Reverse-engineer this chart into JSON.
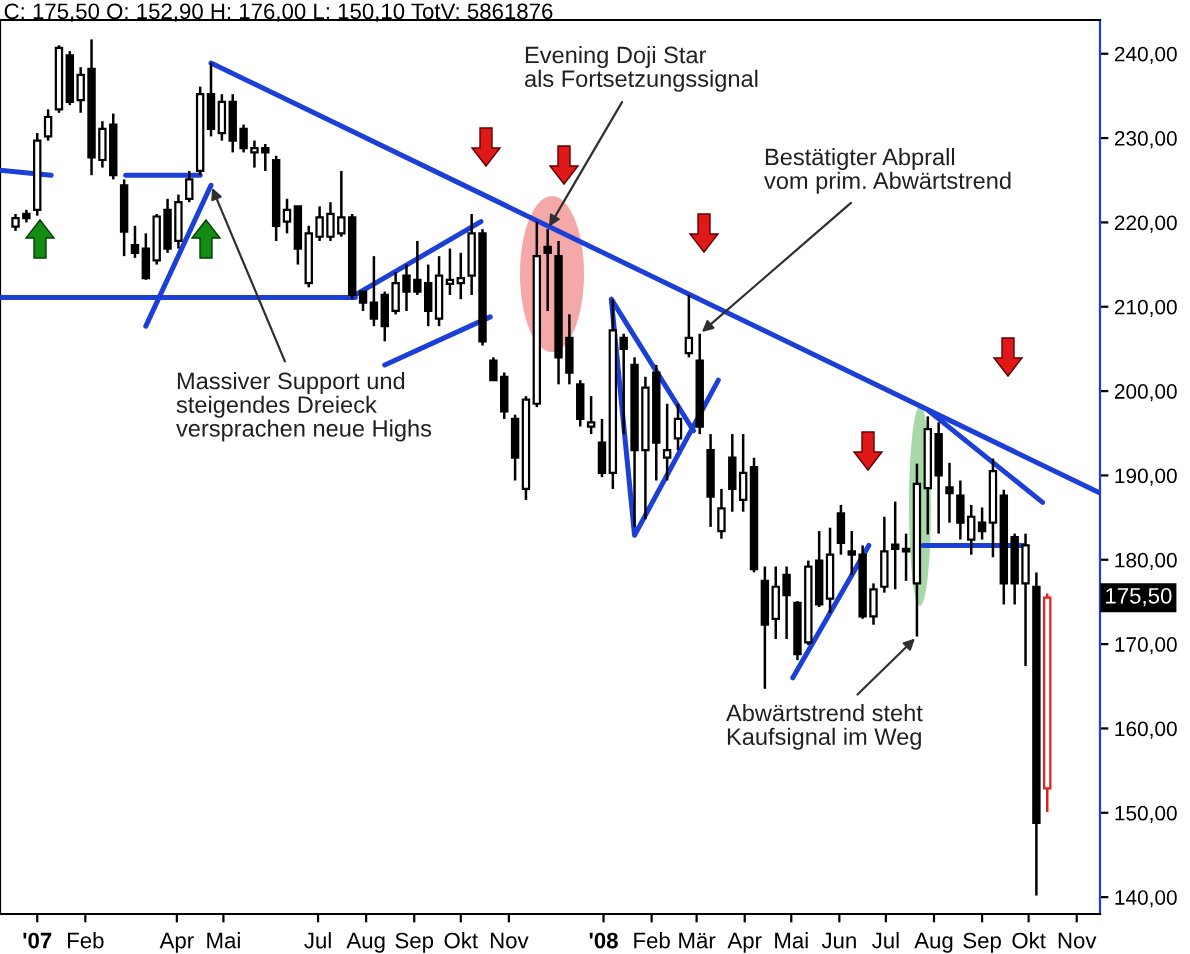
{
  "chart_data": {
    "type": "candlestick",
    "title": "C: 175,50 O: 152,90 H: 176,00 L: 150,10 TotV: 5861876",
    "x": [
      "2006-12-18",
      "2006-12-25",
      "2007-01-01",
      "2007-01-08",
      "2007-01-15",
      "2007-01-22",
      "2007-01-29",
      "2007-02-05",
      "2007-02-12",
      "2007-02-19",
      "2007-02-26",
      "2007-03-05",
      "2007-03-12",
      "2007-03-19",
      "2007-03-26",
      "2007-04-02",
      "2007-04-09",
      "2007-04-16",
      "2007-04-23",
      "2007-04-30",
      "2007-05-07",
      "2007-05-14",
      "2007-05-21",
      "2007-05-28",
      "2007-06-04",
      "2007-06-11",
      "2007-06-18",
      "2007-06-25",
      "2007-07-02",
      "2007-07-09",
      "2007-07-16",
      "2007-07-23",
      "2007-07-30",
      "2007-08-06",
      "2007-08-13",
      "2007-08-20",
      "2007-08-27",
      "2007-09-03",
      "2007-09-10",
      "2007-09-17",
      "2007-09-24",
      "2007-10-01",
      "2007-10-08",
      "2007-10-15",
      "2007-10-22",
      "2007-10-29",
      "2007-11-05",
      "2007-11-12",
      "2007-11-19",
      "2007-11-26",
      "2007-12-03",
      "2007-12-10",
      "2007-12-17",
      "2007-12-24",
      "2007-12-31",
      "2008-01-07",
      "2008-01-14",
      "2008-01-21",
      "2008-01-28",
      "2008-02-04",
      "2008-02-11",
      "2008-02-18",
      "2008-02-25",
      "2008-03-03",
      "2008-03-10",
      "2008-03-17",
      "2008-03-24",
      "2008-03-31",
      "2008-04-07",
      "2008-04-14",
      "2008-04-21",
      "2008-04-28",
      "2008-05-05",
      "2008-05-12",
      "2008-05-19",
      "2008-05-26",
      "2008-06-02",
      "2008-06-09",
      "2008-06-16",
      "2008-06-23",
      "2008-06-30",
      "2008-07-07",
      "2008-07-14",
      "2008-07-21",
      "2008-07-28",
      "2008-08-04",
      "2008-08-11",
      "2008-08-18",
      "2008-08-25",
      "2008-09-01",
      "2008-09-08",
      "2008-09-15",
      "2008-09-22",
      "2008-09-29",
      "2008-10-06",
      "2008-10-13"
    ],
    "ohlc": [
      [
        219.5,
        221,
        219,
        220.5
      ],
      [
        221,
        221.5,
        220,
        220.5
      ],
      [
        221.5,
        230.6,
        220.8,
        229.7
      ],
      [
        230.2,
        233.4,
        229.7,
        232.5
      ],
      [
        233.4,
        241,
        233,
        240.7
      ],
      [
        239.8,
        240.3,
        233.9,
        234.3
      ],
      [
        234.5,
        238.4,
        233,
        237.5
      ],
      [
        238.2,
        241.7,
        225.6,
        227.7
      ],
      [
        227.4,
        232,
        226.5,
        231.1
      ],
      [
        231.6,
        232.9,
        225.1,
        225.6
      ],
      [
        224.4,
        225.1,
        216,
        218.9
      ],
      [
        217.3,
        219.6,
        215.8,
        216.4
      ],
      [
        216.9,
        218.7,
        213.2,
        213.4
      ],
      [
        215.5,
        221,
        215,
        220.7
      ],
      [
        221.5,
        222.8,
        216.4,
        216.9
      ],
      [
        217.8,
        223.3,
        216.9,
        222.4
      ],
      [
        222.8,
        226.1,
        222.4,
        225.1
      ],
      [
        226.1,
        236.1,
        225.6,
        235.2
      ],
      [
        235.2,
        238.9,
        230.2,
        231.1
      ],
      [
        230.6,
        235.2,
        229.7,
        234.3
      ],
      [
        234.3,
        235.2,
        228.3,
        229.7
      ],
      [
        231.1,
        231.6,
        228.3,
        228.8
      ],
      [
        228.3,
        229.7,
        226.5,
        228.8
      ],
      [
        228.8,
        229.3,
        226.1,
        228.3
      ],
      [
        227.4,
        227.9,
        217.8,
        219.6
      ],
      [
        220.1,
        222.8,
        218.7,
        221.5
      ],
      [
        221.9,
        221.9,
        215,
        216.9
      ],
      [
        212.8,
        219.6,
        212.3,
        218.7
      ],
      [
        218.3,
        221.9,
        217.8,
        220.6
      ],
      [
        218.3,
        222.4,
        217.8,
        221
      ],
      [
        218.7,
        226.1,
        218.3,
        220.6
      ],
      [
        220.6,
        221,
        210.9,
        211.4
      ],
      [
        211.8,
        211.8,
        209.5,
        210.5
      ],
      [
        210.5,
        216,
        207.7,
        208.6
      ],
      [
        211.4,
        211.8,
        205.9,
        207.7
      ],
      [
        209.5,
        214.1,
        209.1,
        212.8
      ],
      [
        213.7,
        215,
        209.5,
        211.8
      ],
      [
        213.2,
        217.8,
        211.4,
        211.8
      ],
      [
        212.8,
        215,
        207.7,
        209.5
      ],
      [
        208.6,
        216,
        207.7,
        213.7
      ],
      [
        212.7,
        216.9,
        211.4,
        213.2
      ],
      [
        212.8,
        216.4,
        210.9,
        213.4
      ],
      [
        213.7,
        221,
        211.4,
        218.7
      ],
      [
        218.7,
        219.2,
        205.4,
        205.9
      ],
      [
        203.6,
        204,
        201.3,
        201.3
      ],
      [
        201.7,
        202.2,
        196.7,
        197.6
      ],
      [
        196.7,
        197.2,
        189.4,
        192.1
      ],
      [
        188.4,
        199.4,
        187.1,
        199
      ],
      [
        198.5,
        220.1,
        198.1,
        216
      ],
      [
        217.1,
        219.2,
        209.5,
        216.4
      ],
      [
        216,
        217.8,
        200.8,
        204
      ],
      [
        206.3,
        209.1,
        200.8,
        202.2
      ],
      [
        200.8,
        201.3,
        195.8,
        196.7
      ],
      [
        195.8,
        199.4,
        194.9,
        196.3
      ],
      [
        193.9,
        196.7,
        189.8,
        190.3
      ],
      [
        190.3,
        210.9,
        188.4,
        207.2
      ],
      [
        206.3,
        206.8,
        194.9,
        205
      ],
      [
        203.1,
        204,
        183.9,
        193
      ],
      [
        193,
        201.7,
        184.8,
        200.4
      ],
      [
        202.2,
        203.1,
        189.4,
        193.9
      ],
      [
        192.1,
        198.5,
        189.4,
        193
      ],
      [
        194.4,
        198.5,
        193,
        196.7
      ],
      [
        204.5,
        211.4,
        204,
        206.3
      ],
      [
        203.6,
        206.8,
        194.9,
        195.8
      ],
      [
        193,
        194.9,
        183.9,
        187.5
      ],
      [
        183.4,
        188.4,
        182.5,
        186.1
      ],
      [
        192.1,
        194.9,
        185.7,
        188.4
      ],
      [
        187.1,
        194.9,
        185.7,
        190.3
      ],
      [
        191,
        192.1,
        178.5,
        178.9
      ],
      [
        177.5,
        179.2,
        164.7,
        172.3
      ],
      [
        173,
        179.2,
        170.6,
        176.8
      ],
      [
        178.2,
        179.2,
        170.6,
        175.8
      ],
      [
        174.9,
        175.1,
        168.1,
        168.8
      ],
      [
        170.2,
        179.9,
        169.9,
        179.2
      ],
      [
        179.9,
        183.4,
        174.4,
        174.7
      ],
      [
        175.4,
        183.8,
        173.7,
        180.6
      ],
      [
        185.5,
        186.5,
        180.6,
        182
      ],
      [
        181,
        183.4,
        178.2,
        180.6
      ],
      [
        180.6,
        181.7,
        173,
        173.3
      ],
      [
        173.3,
        177.2,
        172.3,
        176.5
      ],
      [
        176.8,
        185.1,
        176.1,
        181
      ],
      [
        181.8,
        186.9,
        176.5,
        181.3
      ],
      [
        181.3,
        183.1,
        177.5,
        181
      ],
      [
        177.2,
        191.4,
        170.9,
        189
      ],
      [
        188.5,
        197,
        183,
        195.5
      ],
      [
        194.9,
        196.3,
        183.1,
        190
      ],
      [
        188.6,
        191.5,
        184.4,
        187.9
      ],
      [
        187.6,
        189.4,
        182.4,
        184.4
      ],
      [
        182.4,
        186.5,
        180.6,
        185.1
      ],
      [
        184.4,
        186.2,
        182.4,
        183.4
      ],
      [
        184.4,
        192,
        180.3,
        190.5
      ],
      [
        187.6,
        188.3,
        174.7,
        177.2
      ],
      [
        182.7,
        183.1,
        174.7,
        177.2
      ],
      [
        177.2,
        183.1,
        167.4,
        181.7
      ],
      [
        176.8,
        178.5,
        140.2,
        148.8
      ],
      [
        152.9,
        176,
        150.1,
        175.5
      ]
    ],
    "colors": [
      "#000000",
      "#000000",
      "#000000",
      "#000000",
      "#000000",
      "#000000",
      "#000000",
      "#000000",
      "#000000",
      "#000000",
      "#000000",
      "#000000",
      "#000000",
      "#000000",
      "#000000",
      "#000000",
      "#000000",
      "#000000",
      "#000000",
      "#000000",
      "#000000",
      "#000000",
      "#000000",
      "#000000",
      "#000000",
      "#000000",
      "#000000",
      "#000000",
      "#000000",
      "#000000",
      "#000000",
      "#000000",
      "#000000",
      "#000000",
      "#000000",
      "#000000",
      "#000000",
      "#000000",
      "#000000",
      "#000000",
      "#000000",
      "#000000",
      "#000000",
      "#000000",
      "#000000",
      "#000000",
      "#000000",
      "#000000",
      "#000000",
      "#000000",
      "#000000",
      "#000000",
      "#000000",
      "#000000",
      "#000000",
      "#000000",
      "#000000",
      "#000000",
      "#000000",
      "#000000",
      "#000000",
      "#000000",
      "#000000",
      "#000000",
      "#000000",
      "#000000",
      "#000000",
      "#000000",
      "#000000",
      "#000000",
      "#000000",
      "#000000",
      "#000000",
      "#000000",
      "#000000",
      "#000000",
      "#000000",
      "#000000",
      "#000000",
      "#000000",
      "#000000",
      "#000000",
      "#000000",
      "#000000",
      "#000000",
      "#000000",
      "#000000",
      "#000000",
      "#000000",
      "#000000",
      "#000000",
      "#000000",
      "#000000",
      "#000000",
      "#000000",
      "#e02020"
    ],
    "series": [
      {
        "type": "line",
        "color": "#1c3fd8",
        "x": [
          "2007-04-23",
          "2008-11-15"
        ],
        "values": [
          238.9,
          188
        ]
      },
      {
        "type": "line",
        "color": "#1c3fd8",
        "x": [
          "2006-12-08",
          "2007-01-10"
        ],
        "values": [
          226.2,
          225.6
        ]
      },
      {
        "type": "line",
        "color": "#1c3fd8",
        "x": [
          "2006-12-08",
          "2007-07-25"
        ],
        "values": [
          211.1,
          211.1
        ]
      },
      {
        "type": "line",
        "color": "#1c3fd8",
        "x": [
          "2007-02-27",
          "2007-04-16"
        ],
        "values": [
          225.6,
          225.6
        ]
      },
      {
        "type": "line",
        "color": "#1c3fd8",
        "x": [
          "2007-03-12",
          "2007-04-23"
        ],
        "values": [
          207.7,
          224.4
        ]
      },
      {
        "type": "line",
        "color": "#1c3fd8",
        "x": [
          "2007-07-25",
          "2007-10-14"
        ],
        "values": [
          211.4,
          220.1
        ]
      },
      {
        "type": "line",
        "color": "#1c3fd8",
        "x": [
          "2007-08-13",
          "2007-10-20"
        ],
        "values": [
          203.1,
          208.8
        ]
      },
      {
        "type": "line",
        "color": "#1c3fd8",
        "x": [
          "2008-02-28",
          "2008-01-06",
          "2008-01-21",
          "2008-03-15"
        ],
        "values": [
          195.3,
          210.9,
          182.9,
          201.3
        ]
      },
      {
        "type": "line",
        "color": "#1c3fd8",
        "x": [
          "2008-05-02",
          "2008-06-20"
        ],
        "values": [
          166,
          181.7
        ]
      },
      {
        "type": "line",
        "color": "#1c3fd8",
        "x": [
          "2008-07-25",
          "2008-09-28"
        ],
        "values": [
          181.7,
          181.7
        ]
      },
      {
        "type": "line",
        "color": "#1c3fd8",
        "x": [
          "2008-07-29",
          "2008-10-10"
        ],
        "values": [
          197.6,
          186.8
        ]
      }
    ],
    "annotations": [
      {
        "text": "Massiver Support und\nsteigendes Dreieck\nversprachen neue Highs",
        "x": "2007-04-23",
        "y": 224.4
      },
      {
        "text": "Evening Doji Star\nals Fortsetzungssignal",
        "x": "2007-11-26",
        "y": 219.2
      },
      {
        "text": "Bestätigter Abprall\nvom prim. Abwärtstrend",
        "x": "2008-03-03",
        "y": 206.8
      },
      {
        "text": "Abwärtstrend steht\nKaufsignal im Weg",
        "x": "2008-07-21",
        "y": 170.9
      },
      {
        "text": "175,50",
        "x": "2008-10-13",
        "y": 175.5
      }
    ],
    "xlim": [
      "2006-12-08",
      "2008-11-16"
    ],
    "ylim": [
      138,
      244
    ],
    "xticks": [
      {
        "value": "2007-01",
        "label": "'07"
      },
      {
        "value": "2007-02",
        "label": "Feb"
      },
      {
        "value": "2007-04",
        "label": "Apr"
      },
      {
        "value": "2007-05",
        "label": "Mai"
      },
      {
        "value": "2007-07",
        "label": "Jul"
      },
      {
        "value": "2007-08",
        "label": "Aug"
      },
      {
        "value": "2007-09",
        "label": "Sep"
      },
      {
        "value": "2007-10",
        "label": "Okt"
      },
      {
        "value": "2007-11",
        "label": "Nov"
      },
      {
        "value": "2008-01",
        "label": "'08"
      },
      {
        "value": "2008-02",
        "label": "Feb"
      },
      {
        "value": "2008-03",
        "label": "Mär"
      },
      {
        "value": "2008-04",
        "label": "Apr"
      },
      {
        "value": "2008-05",
        "label": "Mai"
      },
      {
        "value": "2008-06",
        "label": "Jun"
      },
      {
        "value": "2008-07",
        "label": "Jul"
      },
      {
        "value": "2008-08",
        "label": "Aug"
      },
      {
        "value": "2008-09",
        "label": "Sep"
      },
      {
        "value": "2008-10",
        "label": "Okt"
      },
      {
        "value": "2008-11",
        "label": "Nov"
      }
    ],
    "yticks": [
      {
        "value": 140,
        "label": "140,00"
      },
      {
        "value": 150,
        "label": "150,00"
      },
      {
        "value": 160,
        "label": "160,00"
      },
      {
        "value": 170,
        "label": "170,00"
      },
      {
        "value": 180,
        "label": "180,00"
      },
      {
        "value": 190,
        "label": "190,00"
      },
      {
        "value": 200,
        "label": "200,00"
      },
      {
        "value": 210,
        "label": "210,00"
      },
      {
        "value": 220,
        "label": "220,00"
      },
      {
        "value": 230,
        "label": "230,00"
      },
      {
        "value": 240,
        "label": "240,00"
      }
    ]
  }
}
